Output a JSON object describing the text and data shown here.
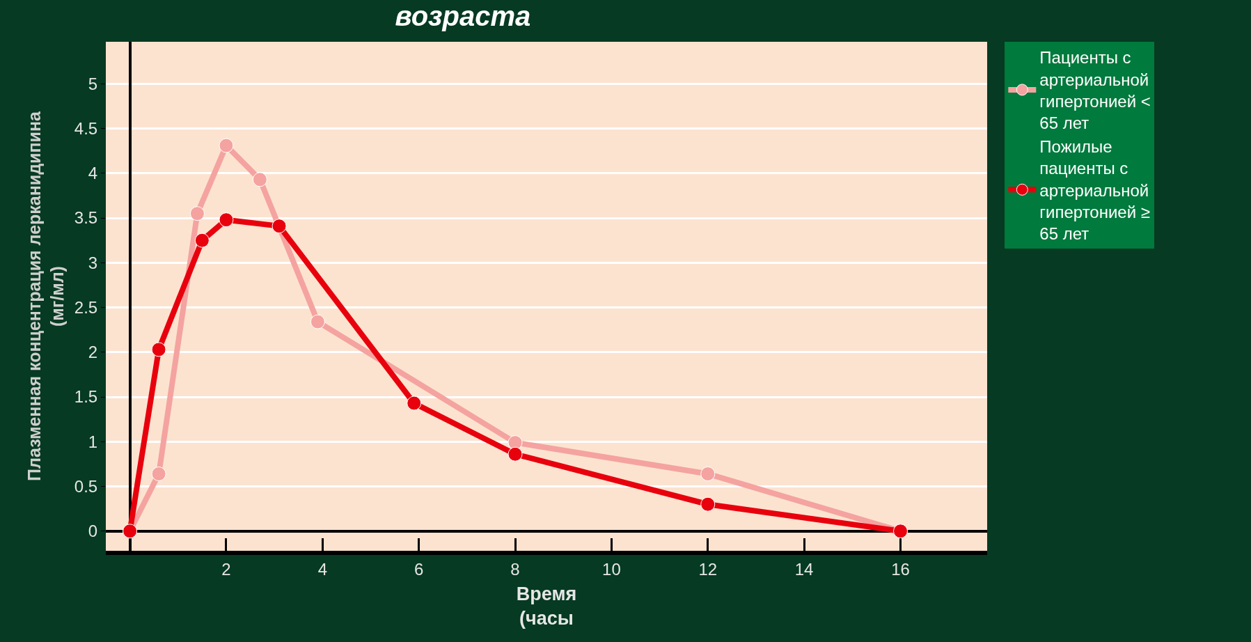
{
  "chart_data": {
    "type": "line",
    "title": "возраста",
    "xlabel": "Время (часы",
    "ylabel": "Плазменная концентрация лерканидипина (мг/мл)",
    "xlim": [
      -0.5,
      17.8
    ],
    "xticks": [
      2,
      4,
      6,
      8,
      10,
      12,
      14,
      16
    ],
    "ylim": [
      -0.22,
      5.47
    ],
    "yticks": [
      0,
      0.5,
      1,
      1.5,
      2,
      2.5,
      3,
      3.5,
      4,
      4.5,
      5
    ],
    "grid": "y",
    "legend": "top right",
    "marker": "circle",
    "line_style": "solid",
    "series": [
      {
        "name": "Пациенты с артериальной гипертонией < 65 лет",
        "color": "#f4a3a0",
        "x": [
          0,
          0.6,
          1.4,
          2,
          2.7,
          3.9,
          8,
          12,
          16
        ],
        "values": [
          0,
          0.64,
          3.55,
          4.31,
          3.93,
          2.34,
          0.99,
          0.64,
          0
        ]
      },
      {
        "name": "Пожилые пациенты с артериальной гипертонией ≥ 65 лет",
        "color": "#e8000d",
        "x": [
          0,
          0.6,
          1.5,
          2,
          3.1,
          5.9,
          8,
          12,
          16
        ],
        "values": [
          0,
          2.03,
          3.25,
          3.48,
          3.41,
          1.43,
          0.86,
          0.3,
          0
        ]
      }
    ]
  }
}
